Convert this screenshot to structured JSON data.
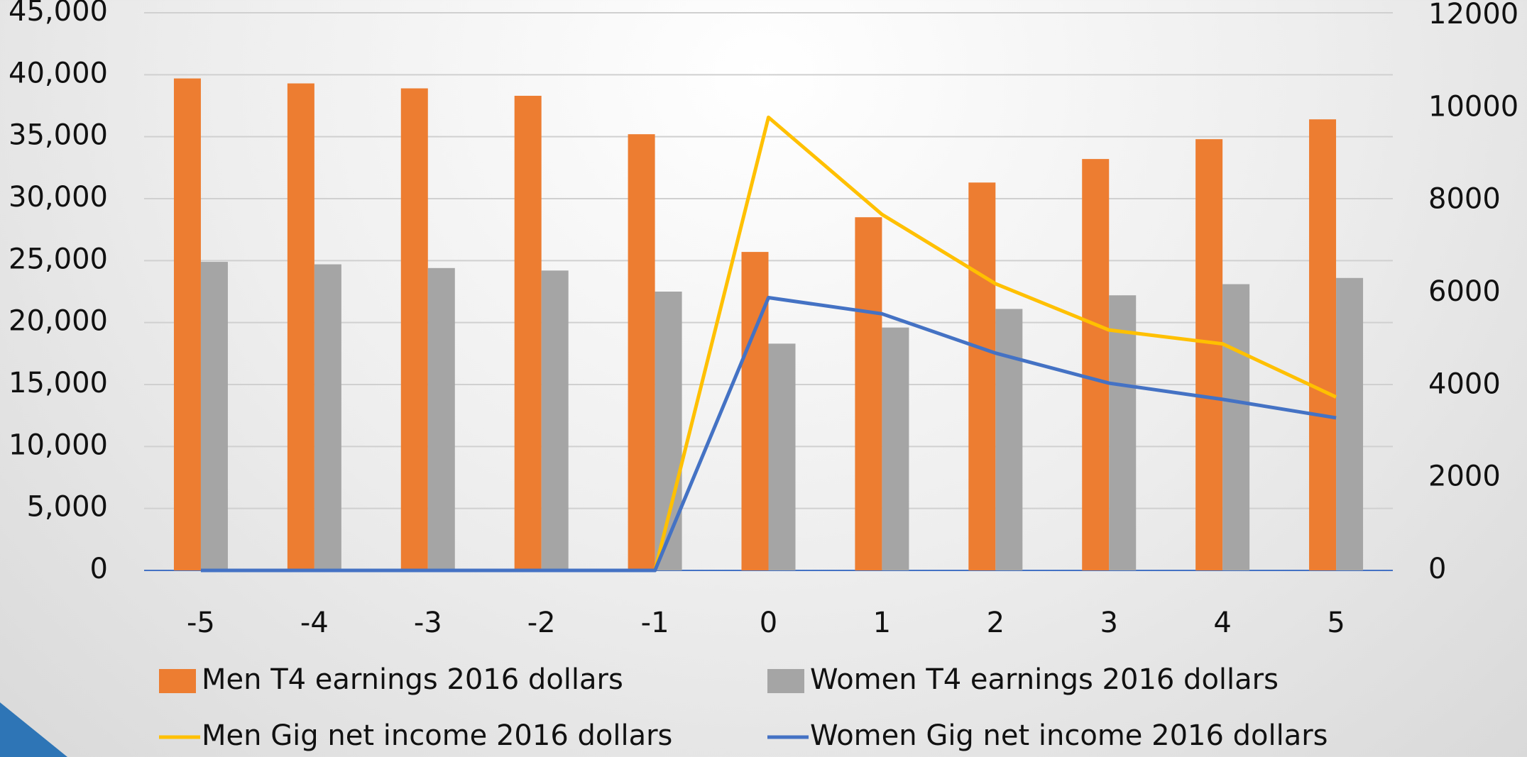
{
  "chart_data": {
    "type": "bar",
    "categories": [
      "-5",
      "-4",
      "-3",
      "-2",
      "-1",
      "0",
      "1",
      "2",
      "3",
      "4",
      "5"
    ],
    "series": [
      {
        "name": "Men T4 earnings 2016 dollars",
        "type": "bar",
        "color": "#ed7d31",
        "values": [
          39700,
          39300,
          38900,
          38300,
          35200,
          25700,
          28500,
          31300,
          33200,
          34800,
          36400
        ]
      },
      {
        "name": "Women T4 earnings 2016 dollars",
        "type": "bar",
        "color": "#a5a5a5",
        "values": [
          24900,
          24700,
          24400,
          24200,
          22500,
          18300,
          19600,
          21100,
          22200,
          23100,
          23600
        ]
      },
      {
        "name": "Men Gig net income 2016 dollars",
        "type": "line",
        "axis": "y2",
        "color": "#ffc000",
        "values": [
          0,
          0,
          0,
          0,
          0,
          9800,
          7700,
          6200,
          5200,
          4900,
          3750
        ]
      },
      {
        "name": "Women Gig net income 2016 dollars",
        "type": "line",
        "axis": "y2",
        "color": "#4472c4",
        "values": [
          0,
          0,
          0,
          0,
          0,
          5900,
          5550,
          4700,
          4050,
          3700,
          3300
        ]
      }
    ],
    "ylim": [
      0,
      45000
    ],
    "yticks": [
      0,
      {
        "value": 5000,
        "label": "5,000"
      },
      {
        "value": 10000,
        "label": "10,000"
      },
      {
        "value": 15000,
        "label": "15,000"
      },
      {
        "value": 20000,
        "label": "20,000"
      },
      {
        "value": 25000,
        "label": "25,000"
      },
      {
        "value": 30000,
        "label": "30,000"
      },
      {
        "value": 35000,
        "label": "35,000"
      },
      {
        "value": 40000,
        "label": "40,000"
      },
      {
        "value": 45000,
        "label": "45,000"
      }
    ],
    "y2lim": [
      0,
      12000
    ],
    "y2ticks": [
      0,
      2000,
      4000,
      6000,
      8000,
      10000,
      12000
    ],
    "grid": true,
    "legend": "bottom"
  }
}
